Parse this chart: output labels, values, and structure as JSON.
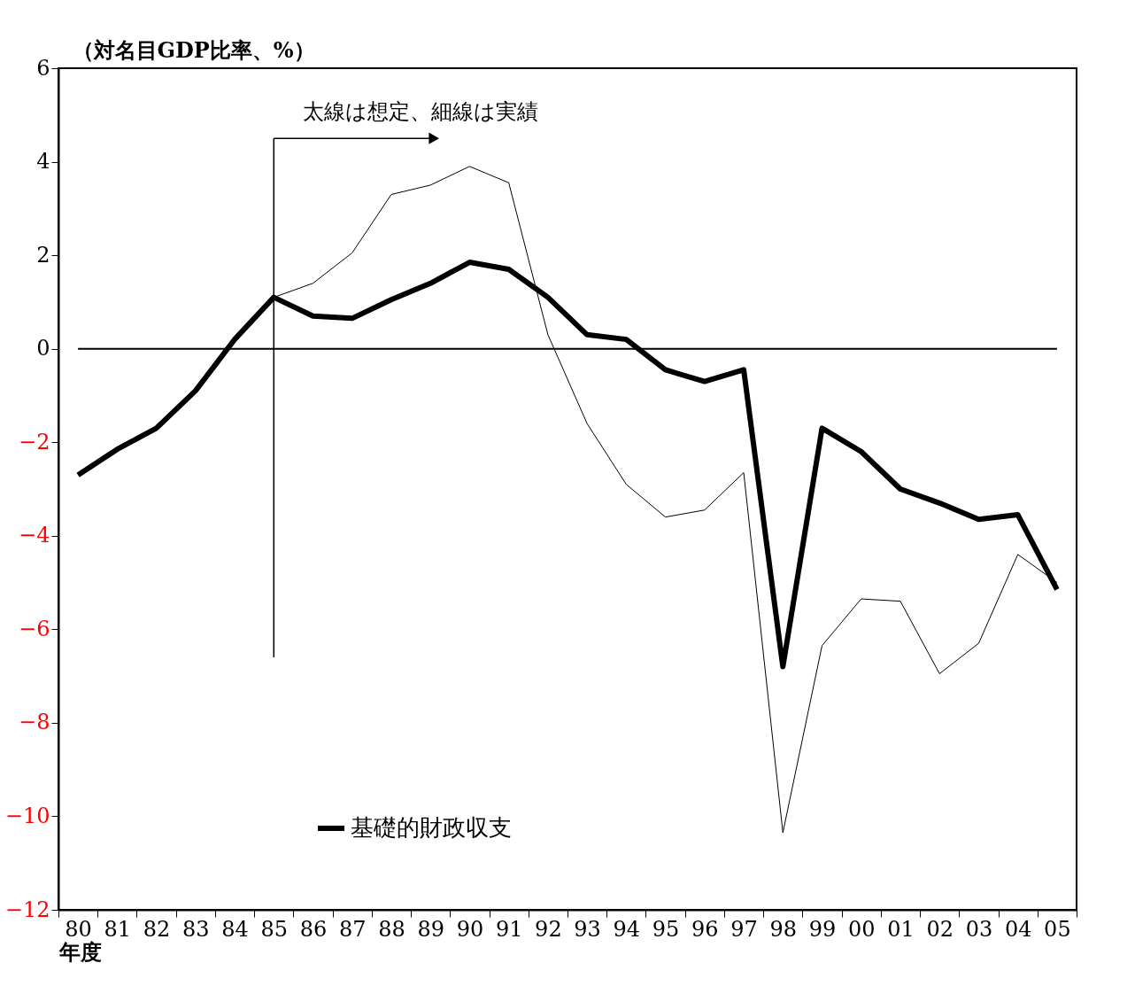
{
  "chart_data": {
    "type": "line",
    "ylabel": "（対名目GDP比率、%）",
    "xlabel": "年度",
    "categories": [
      "80",
      "81",
      "82",
      "83",
      "84",
      "85",
      "86",
      "87",
      "88",
      "89",
      "90",
      "91",
      "92",
      "93",
      "94",
      "95",
      "96",
      "97",
      "98",
      "99",
      "00",
      "01",
      "02",
      "03",
      "04",
      "05"
    ],
    "series": [
      {
        "name": "基礎的財政収支",
        "color": "#000000",
        "values": [
          -2.7,
          -2.15,
          -1.7,
          -0.9,
          0.2,
          1.1,
          0.7,
          0.65,
          1.05,
          1.4,
          1.85,
          1.7,
          1.1,
          0.3,
          0.2,
          -0.45,
          -0.7,
          -0.45,
          -6.8,
          -1.7,
          -2.2,
          -3.0,
          -3.3,
          -3.65,
          -3.55,
          -5.15
        ]
      },
      {
        "color": "#000000",
        "values": [
          null,
          null,
          null,
          null,
          null,
          1.1,
          1.4,
          2.05,
          3.3,
          3.5,
          3.9,
          3.55,
          0.3,
          -1.6,
          -2.9,
          -3.6,
          -3.45,
          -2.65,
          -10.35,
          -6.35,
          -5.35,
          -5.4,
          -6.95,
          -6.3,
          -4.4,
          -5.0
        ]
      }
    ],
    "ylim": [
      -12,
      6
    ],
    "yticks": [
      -12,
      -10,
      -8,
      -6,
      -4,
      -2,
      0,
      2,
      4,
      6
    ],
    "ref_lines": [
      {
        "axis": "y",
        "value": 0
      },
      {
        "axis": "x",
        "value": "85"
      }
    ],
    "annotations": [
      "太線は想定、細線は実績"
    ],
    "legend": "bottom left",
    "grid": false
  }
}
